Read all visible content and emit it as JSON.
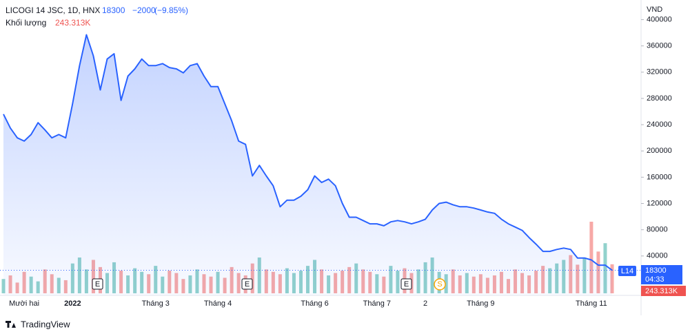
{
  "chart_data": {
    "type": "line",
    "title": "LICOGI 14 JSC, 1D, HNX",
    "last_price": "18300",
    "change": "−2000",
    "change_percent": "(−9.85%)",
    "volume_label": "Khối lượng",
    "volume_value": "243.313K",
    "y_unit": "VND",
    "symbol_tag": "L14",
    "countdown": "04:33",
    "event_markers": [
      "E",
      "E",
      "E",
      "S"
    ],
    "footer": "TradingView",
    "categories": [
      null,
      null,
      null,
      "Mười hai",
      null,
      null,
      null,
      null,
      null,
      null,
      "2022",
      null,
      null,
      null,
      null,
      null,
      null,
      null,
      null,
      null,
      null,
      null,
      "Tháng 3",
      null,
      null,
      null,
      null,
      null,
      null,
      null,
      null,
      "Tháng 4",
      null,
      null,
      null,
      null,
      null,
      null,
      null,
      null,
      null,
      null,
      null,
      null,
      null,
      "Tháng 6",
      null,
      null,
      null,
      null,
      null,
      null,
      null,
      null,
      "Tháng 7",
      null,
      null,
      null,
      null,
      null,
      null,
      "2",
      null,
      null,
      null,
      null,
      null,
      null,
      null,
      "Tháng 9",
      null,
      null,
      null,
      null,
      null,
      null,
      null,
      null,
      null,
      null,
      null,
      null,
      null,
      null,
      null,
      "Tháng 11",
      null,
      null,
      null
    ],
    "series": [
      {
        "color": "#2962ff",
        "values": [
          256000,
          235000,
          220000,
          215000,
          225000,
          243000,
          232000,
          220000,
          225000,
          220000,
          272000,
          330000,
          377000,
          345000,
          293000,
          340000,
          348000,
          277000,
          314000,
          325000,
          340000,
          330000,
          330000,
          333000,
          327000,
          325000,
          319000,
          330000,
          333000,
          314000,
          298000,
          298000,
          272000,
          246000,
          215000,
          210000,
          162000,
          178000,
          162000,
          147000,
          115000,
          125000,
          125000,
          131000,
          141000,
          162000,
          152000,
          157000,
          147000,
          120000,
          99000,
          99000,
          94000,
          89000,
          89000,
          86000,
          92000,
          94000,
          92000,
          89000,
          92000,
          96000,
          110000,
          120000,
          122000,
          118000,
          115000,
          115000,
          113000,
          110000,
          107000,
          105000,
          96000,
          89000,
          84000,
          79000,
          68000,
          58000,
          47000,
          47000,
          50000,
          52000,
          50000,
          37000,
          37000,
          34000,
          26000,
          26000,
          18300
        ]
      }
    ],
    "volume": {
      "up_color": "#26a69a",
      "down_color": "#ef5350",
      "values": [
        120000,
        150000,
        90000,
        180000,
        140000,
        100000,
        200000,
        160000,
        130000,
        110000,
        250000,
        300000,
        200000,
        280000,
        220000,
        170000,
        260000,
        190000,
        150000,
        210000,
        180000,
        160000,
        230000,
        140000,
        190000,
        170000,
        120000,
        150000,
        200000,
        160000,
        140000,
        180000,
        130000,
        220000,
        170000,
        150000,
        250000,
        300000,
        200000,
        180000,
        160000,
        210000,
        170000,
        190000,
        230000,
        280000,
        200000,
        150000,
        170000,
        190000,
        220000,
        250000,
        200000,
        180000,
        160000,
        140000,
        230000,
        190000,
        210000,
        170000,
        200000,
        260000,
        300000,
        180000,
        160000,
        200000,
        150000,
        170000,
        140000,
        160000,
        130000,
        150000,
        180000,
        120000,
        200000,
        170000,
        150000,
        190000,
        230000,
        210000,
        250000,
        280000,
        320000,
        240000,
        300000,
        600000,
        350000,
        420000,
        243313
      ]
    },
    "ylim": [
      -20000,
      410000
    ],
    "yticks": [
      40000,
      80000,
      120000,
      160000,
      200000,
      240000,
      280000,
      320000,
      360000,
      400000
    ],
    "grid": false,
    "last_price_line": true
  }
}
